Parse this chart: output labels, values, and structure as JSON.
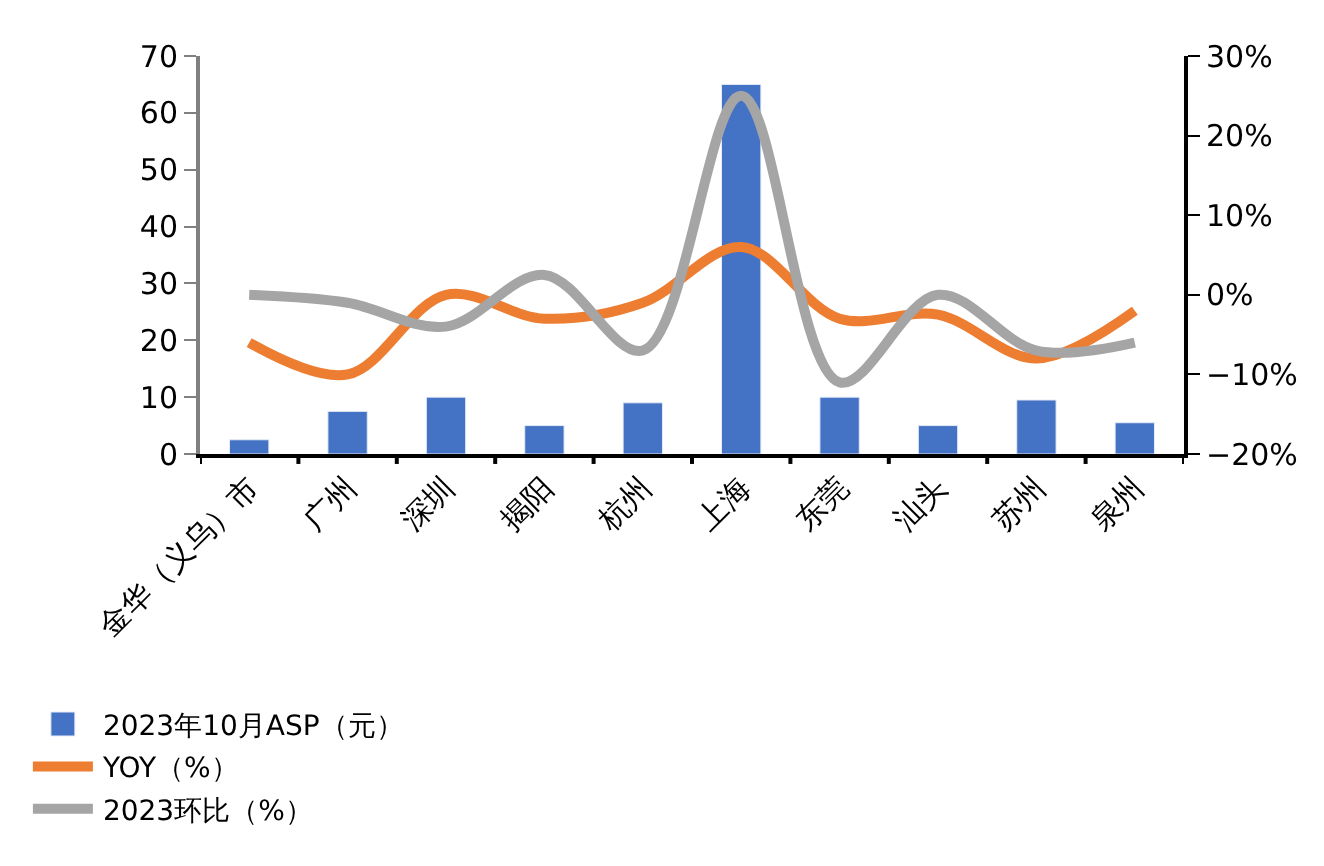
{
  "chart_data": {
    "type": "bar",
    "categories": [
      "金华（义乌）市",
      "广州",
      "深圳",
      "揭阳",
      "杭州",
      "上海",
      "东莞",
      "汕头",
      "苏州",
      "泉州"
    ],
    "series": [
      {
        "name": "2023年10月ASP（元）",
        "color": "#4472c4",
        "values": [
          2.5,
          7.5,
          10,
          5,
          9,
          65,
          10,
          5,
          9.5,
          5.5
        ]
      },
      {
        "name": "YOY（%）",
        "type": "line",
        "axis": "y2",
        "color": "#ed7d31",
        "values": [
          -6,
          -10,
          0,
          -3,
          -1,
          6,
          -3,
          -2.5,
          -8,
          -2
        ]
      },
      {
        "name": "2023环比（%）",
        "type": "line",
        "axis": "y2",
        "color": "#a5a5a5",
        "values": [
          0,
          -1,
          -4,
          2.5,
          -7,
          25,
          -11,
          0,
          -7,
          -6
        ]
      }
    ],
    "ylim": [
      0,
      70
    ],
    "yticks": [
      0,
      10,
      20,
      30,
      40,
      50,
      60,
      70
    ],
    "y2lim": [
      -20,
      30
    ],
    "y2ticks": [
      {
        "value": -20,
        "label": "−20%"
      },
      {
        "value": -10,
        "label": "−10%"
      },
      {
        "value": 0,
        "label": "0%"
      },
      {
        "value": 10,
        "label": "10%"
      },
      {
        "value": 20,
        "label": "20%"
      },
      {
        "value": 30,
        "label": "30%"
      }
    ],
    "legend": "bottom",
    "marker": "none"
  }
}
